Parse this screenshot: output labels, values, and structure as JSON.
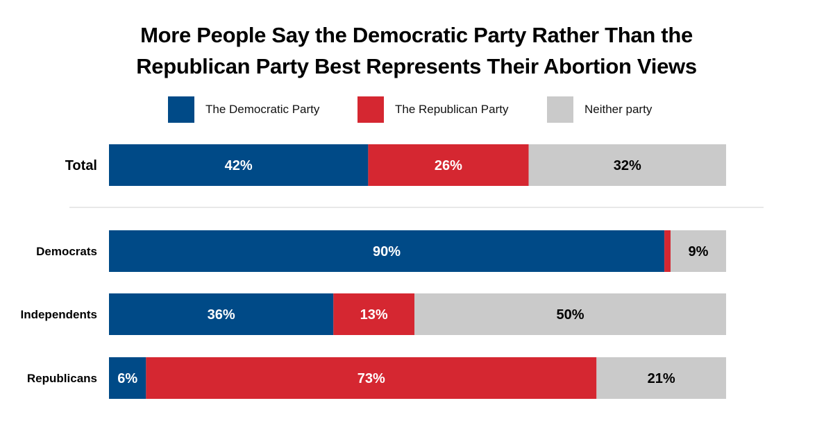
{
  "chart_data": {
    "type": "bar",
    "orientation": "horizontal",
    "stacked": true,
    "title": "More People Say the Democratic Party Rather Than the Republican Party Best Represents Their Abortion Views",
    "title_lines": [
      "More People Say the Democratic Party Rather Than the",
      "Republican Party Best Represents Their Abortion Views"
    ],
    "legend_position": "top",
    "categories": [
      "Total",
      "Democrats",
      "Independents",
      "Republicans"
    ],
    "series": [
      {
        "name": "The Democratic Party",
        "color": "#004a87",
        "label_color": "#ffffff",
        "values": [
          42,
          90,
          36,
          6
        ],
        "labels": [
          "42%",
          "90%",
          "36%",
          "6%"
        ]
      },
      {
        "name": "The Republican Party",
        "color": "#d52731",
        "label_color": "#ffffff",
        "values": [
          26,
          1,
          13,
          73
        ],
        "labels": [
          "26%",
          "",
          "13%",
          "73%"
        ]
      },
      {
        "name": "Neither party",
        "color": "#cacaca",
        "label_color": "#000000",
        "values": [
          32,
          9,
          50,
          21
        ],
        "labels": [
          "32%",
          "9%",
          "50%",
          "21%"
        ]
      }
    ],
    "xlim": [
      0,
      100
    ],
    "grid": false
  }
}
